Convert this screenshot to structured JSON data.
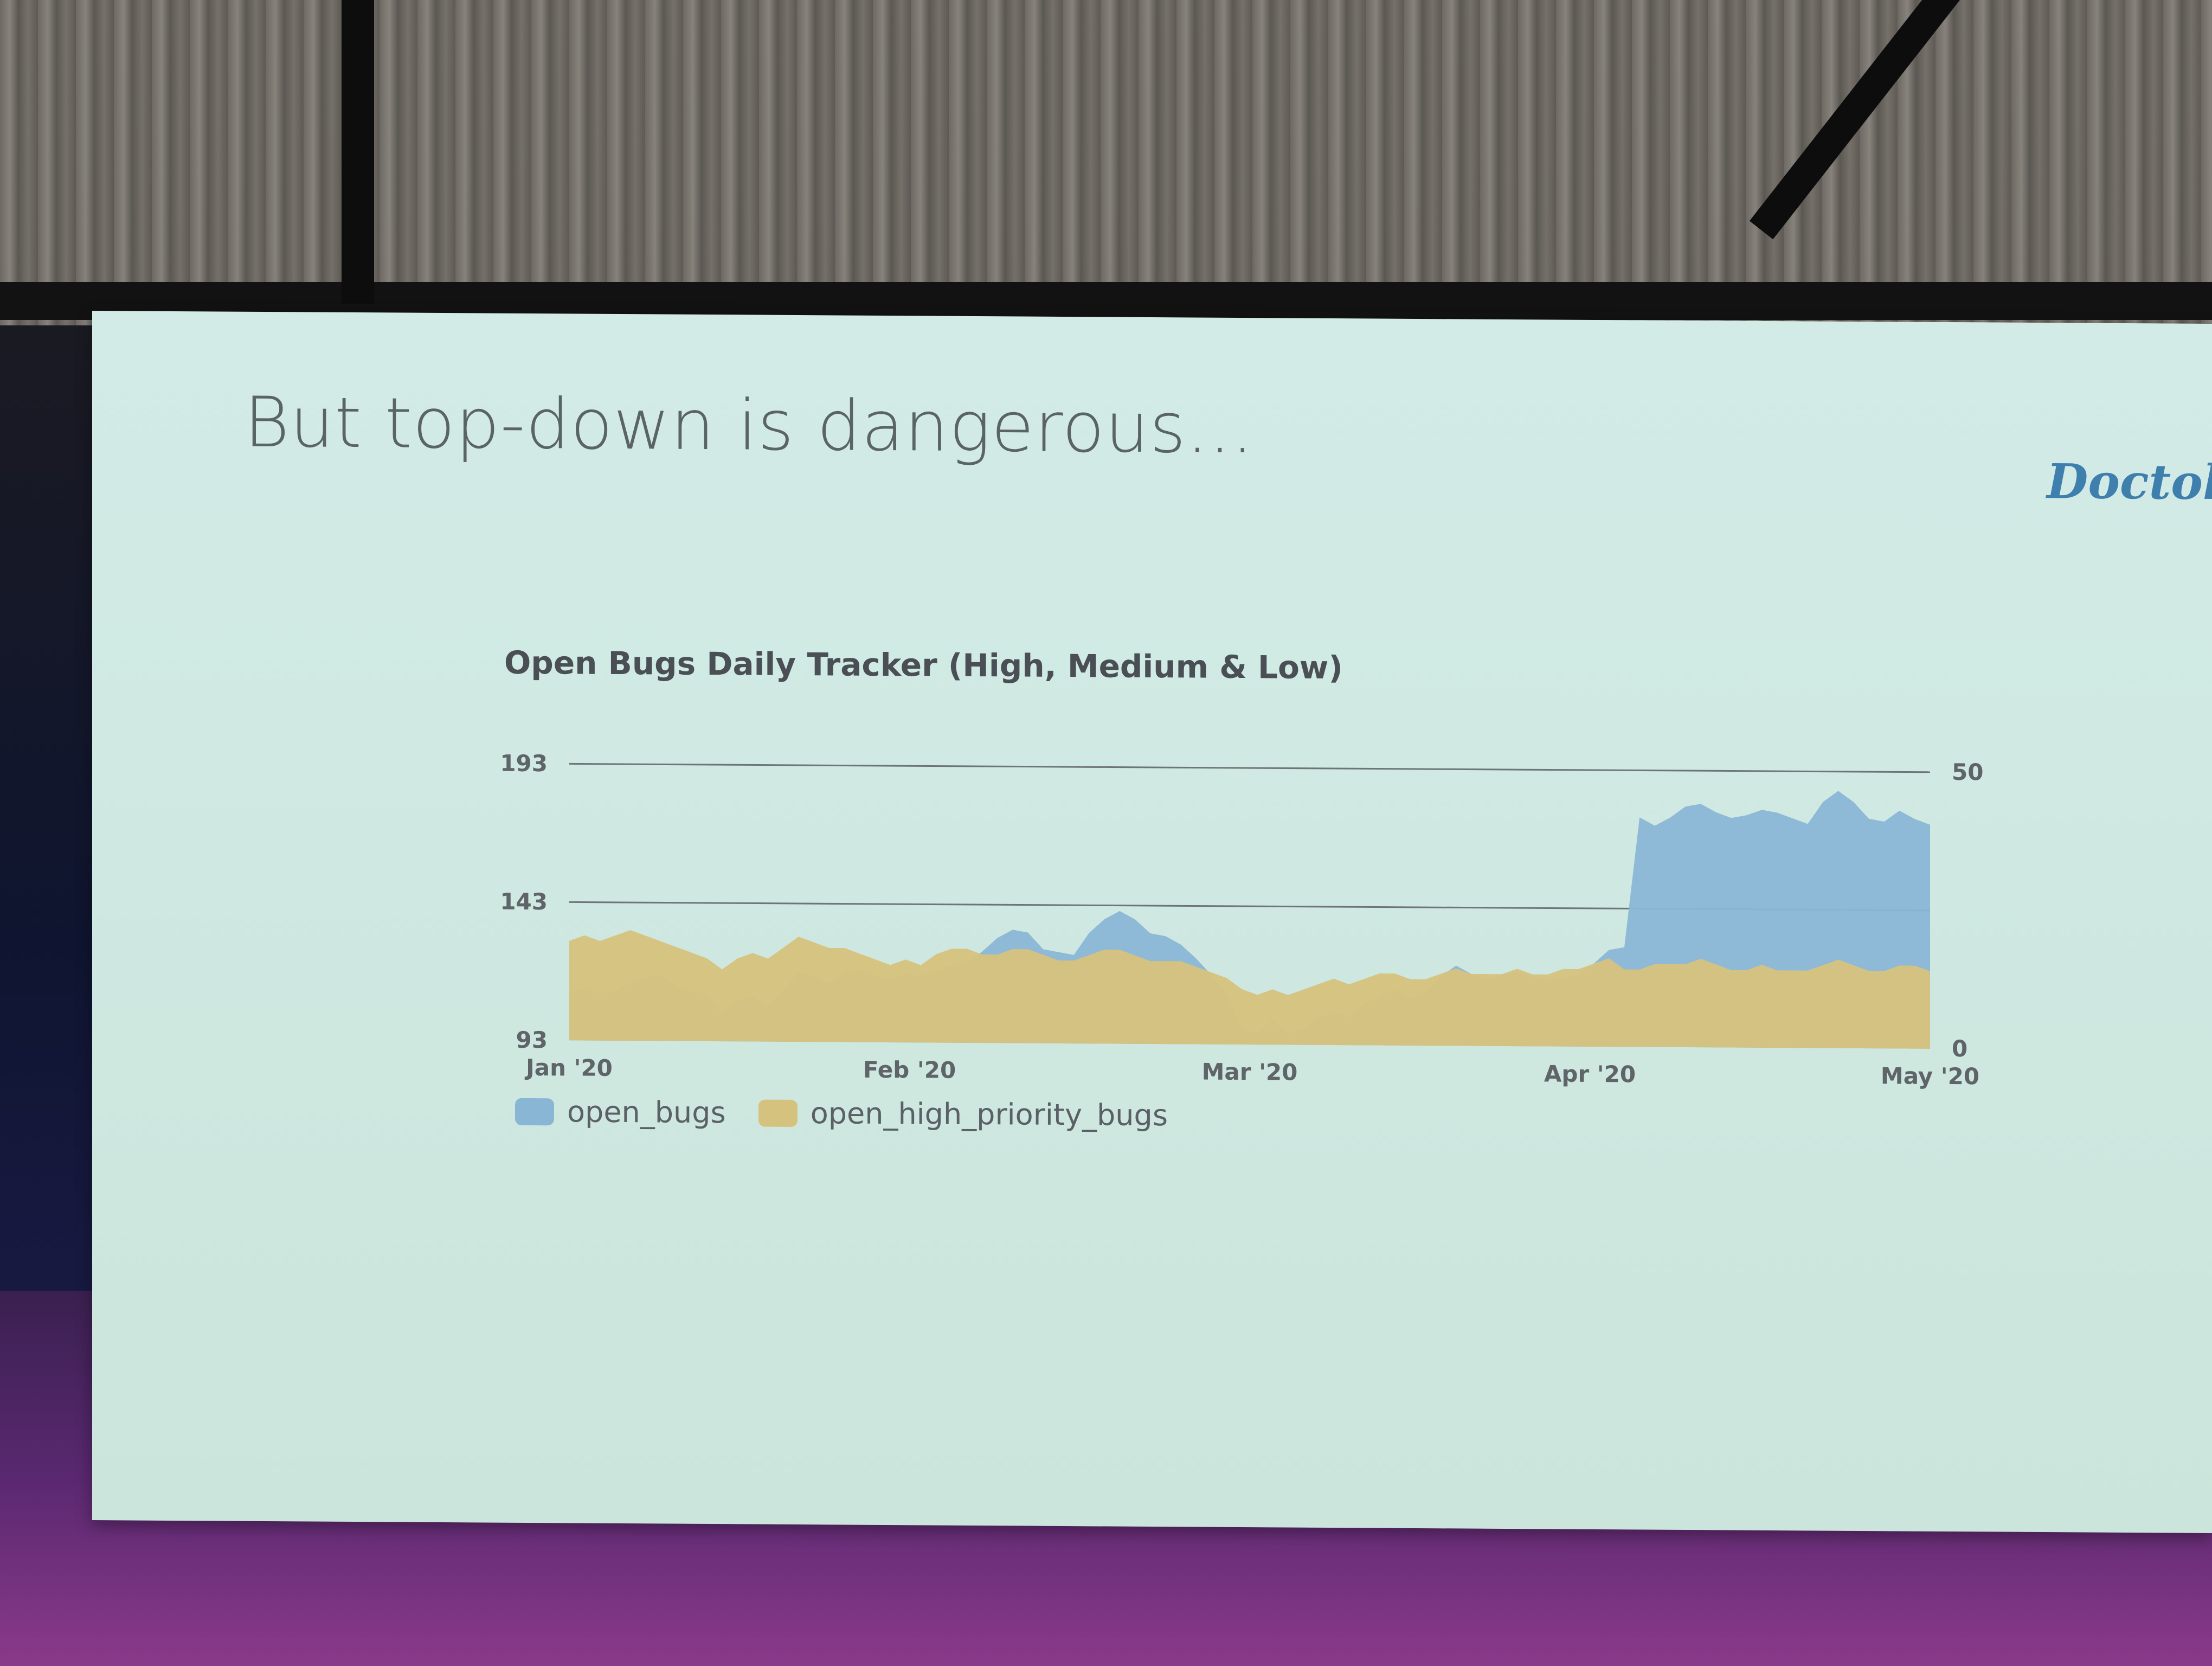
{
  "slide": {
    "title": "But top-down is dangerous...",
    "logo_text": "Doctolib"
  },
  "chart_data": {
    "type": "area",
    "title": "Open Bugs Daily Tracker (High, Medium & Low)",
    "x_ticks": [
      "Jan '20",
      "Feb '20",
      "Mar '20",
      "Apr '20",
      "May '20"
    ],
    "y_left_ticks": [
      "193",
      "143",
      "93"
    ],
    "y_right_ticks": [
      "50",
      "0"
    ],
    "y_left_range": [
      93,
      193
    ],
    "y_right_range": [
      0,
      50
    ],
    "legend_position": "bottom-left",
    "series": [
      {
        "name": "open_bugs",
        "axis": "left",
        "color": "#8ab6d6",
        "values": [
          110,
          112,
          110,
          111,
          114,
          116,
          117,
          113,
          111,
          110,
          103,
          108,
          109,
          106,
          112,
          118,
          117,
          114,
          118,
          119,
          117,
          116,
          118,
          117,
          119,
          121,
          122,
          126,
          131,
          134,
          133,
          127,
          126,
          125,
          133,
          138,
          141,
          138,
          133,
          132,
          129,
          124,
          118,
          111,
          99,
          97,
          102,
          97,
          99,
          103,
          105,
          103,
          108,
          111,
          113,
          110,
          112,
          118,
          122,
          119,
          117,
          119,
          120,
          118,
          117,
          118,
          119,
          123,
          128,
          129,
          176,
          173,
          176,
          180,
          181,
          178,
          176,
          177,
          179,
          178,
          176,
          174,
          182,
          186,
          182,
          176,
          175,
          179,
          176,
          174
        ]
      },
      {
        "name": "open_high_priority_bugs",
        "axis": "right",
        "color": "#d6c27f",
        "values": [
          18,
          19,
          18,
          19,
          20,
          19,
          18,
          17,
          16,
          15,
          13,
          15,
          16,
          15,
          17,
          19,
          18,
          17,
          17,
          16,
          15,
          14,
          15,
          14,
          16,
          17,
          17,
          16,
          16,
          17,
          17,
          16,
          15,
          15,
          16,
          17,
          17,
          16,
          15,
          15,
          15,
          14,
          13,
          12,
          10,
          9,
          10,
          9,
          10,
          11,
          12,
          11,
          12,
          13,
          13,
          12,
          12,
          13,
          14,
          13,
          13,
          13,
          14,
          13,
          13,
          14,
          14,
          15,
          16,
          14,
          14,
          15,
          15,
          15,
          16,
          15,
          14,
          14,
          15,
          14,
          14,
          14,
          15,
          16,
          15,
          14,
          14,
          15,
          15,
          14
        ]
      }
    ]
  }
}
